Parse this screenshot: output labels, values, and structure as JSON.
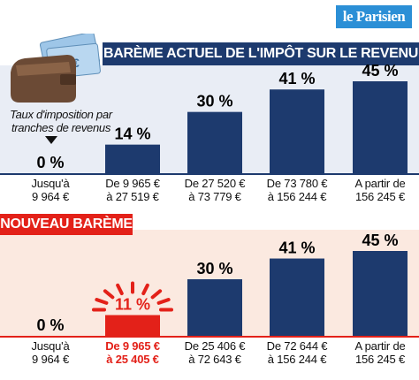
{
  "logo": "le Parisien",
  "chart_data": [
    {
      "type": "bar",
      "title": "BARÈME ACTUEL DE L'IMPÔT SUR LE REVENU",
      "annotation": "Taux d'imposition par tranches de revenus",
      "categories": [
        [
          "Jusqu'à",
          "9 964 €"
        ],
        [
          "De 9 965 €",
          "à 27 519 €"
        ],
        [
          "De 27 520 €",
          "à 73 779 €"
        ],
        [
          "De 73 780 €",
          "à 156 244 €"
        ],
        [
          "A partir de",
          "156 245 €"
        ]
      ],
      "values": [
        0,
        14,
        30,
        41,
        45
      ],
      "value_labels": [
        "0 %",
        "14 %",
        "30 %",
        "41 %",
        "45 %"
      ],
      "ylim": [
        0,
        45
      ],
      "bar_color": "#1d3a6e",
      "panel_color": "#e9edf5"
    },
    {
      "type": "bar",
      "title": "NOUVEAU BARÈME",
      "categories": [
        [
          "Jusqu'à",
          "9 964 €"
        ],
        [
          "De 9 965 €",
          "à 25 405 €"
        ],
        [
          "De 25 406 €",
          "à 72 643 €"
        ],
        [
          "De 72 644 €",
          "à 156 244 €"
        ],
        [
          "A partir de",
          "156 245 €"
        ]
      ],
      "values": [
        0,
        11,
        30,
        41,
        45
      ],
      "value_labels": [
        "0 %",
        "11 %",
        "30 %",
        "41 %",
        "45 %"
      ],
      "highlight_index": 1,
      "ylim": [
        0,
        45
      ],
      "bar_color": "#1d3a6e",
      "highlight_color": "#e32119",
      "panel_color": "#fbe9e0"
    }
  ]
}
